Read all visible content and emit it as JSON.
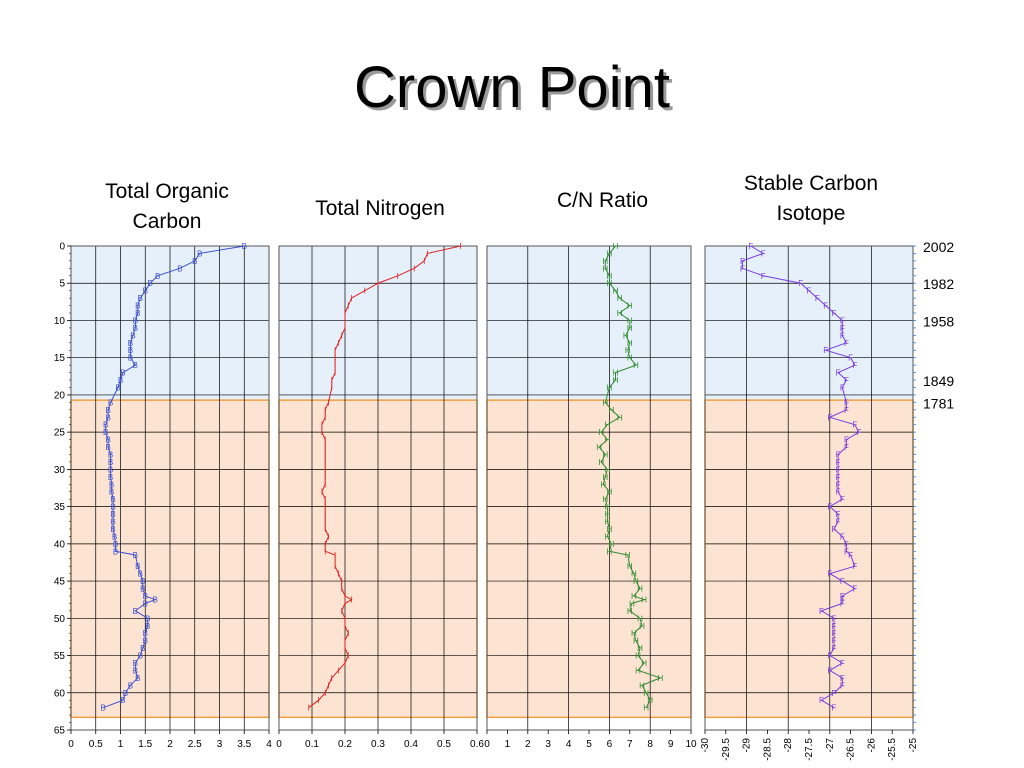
{
  "page": {
    "title": "Crown Point"
  },
  "colors": {
    "upper_zone_fill": "#e6f0fb",
    "lower_zone_fill": "#fde3d2",
    "lower_zone_border": "#f0a040",
    "grid": "#000000"
  },
  "date_labels": [
    {
      "depth": 0,
      "label": "2002"
    },
    {
      "depth": 5,
      "label": "1982"
    },
    {
      "depth": 10,
      "label": "1958"
    },
    {
      "depth": 18,
      "label": "1849"
    },
    {
      "depth": 21,
      "label": "1781"
    }
  ],
  "chart_data": [
    {
      "type": "line",
      "title": "Total Organic Carbon",
      "marker": "B",
      "color": "#3a4fd0",
      "xlim": [
        0,
        4
      ],
      "xticks": [
        "0",
        "0.5",
        "1",
        "1.5",
        "2",
        "2.5",
        "3",
        "3.5",
        "4"
      ],
      "ylim": [
        0,
        65
      ],
      "yticks": [
        "0",
        "5",
        "10",
        "15",
        "20",
        "25",
        "30",
        "35",
        "40",
        "45",
        "50",
        "55",
        "60",
        "65"
      ],
      "x": [
        3.5,
        2.6,
        2.5,
        2.2,
        1.75,
        1.6,
        1.5,
        1.4,
        1.35,
        1.35,
        1.3,
        1.3,
        1.25,
        1.2,
        1.2,
        1.2,
        1.3,
        1.05,
        1.0,
        0.95,
        0.8,
        0.75,
        0.75,
        0.7,
        0.7,
        0.75,
        0.75,
        0.8,
        0.8,
        0.8,
        0.8,
        0.82,
        0.82,
        0.85,
        0.85,
        0.85,
        0.85,
        0.85,
        0.88,
        0.9,
        0.9,
        1.3,
        1.35,
        1.4,
        1.45,
        1.45,
        1.5,
        1.7,
        1.5,
        1.3,
        1.55,
        1.55,
        1.5,
        1.5,
        1.45,
        1.4,
        1.3,
        1.3,
        1.35,
        1.2,
        1.1,
        1.05,
        0.65
      ],
      "y": [
        0,
        1,
        2,
        3,
        4,
        5,
        6,
        7,
        8,
        9,
        10,
        11,
        12,
        13,
        14,
        15,
        16,
        17,
        18,
        19,
        21,
        22,
        23,
        24,
        25,
        26,
        27,
        28,
        29,
        30,
        31,
        32,
        33,
        34,
        35,
        36,
        37,
        38,
        39,
        40,
        41,
        41.5,
        43,
        44,
        45,
        46,
        47,
        47.5,
        48,
        49,
        50,
        51,
        52,
        53,
        54,
        55,
        56,
        57,
        58,
        59,
        60,
        61,
        62
      ]
    },
    {
      "type": "line",
      "title": "Total Nitrogen",
      "marker": "I",
      "color": "#e02020",
      "xlim": [
        0,
        0.6
      ],
      "xticks": [
        "0",
        "0.1",
        "0.2",
        "0.3",
        "0.4",
        "0.5",
        "0.6"
      ],
      "ylim": [
        0,
        65
      ],
      "yticks": [
        "0",
        "5",
        "10",
        "15",
        "20",
        "25",
        "30",
        "35",
        "40",
        "45",
        "50",
        "55",
        "60",
        "65"
      ],
      "x": [
        0.55,
        0.45,
        0.44,
        0.41,
        0.36,
        0.3,
        0.26,
        0.22,
        0.21,
        0.2,
        0.2,
        0.2,
        0.19,
        0.18,
        0.17,
        0.17,
        0.17,
        0.17,
        0.16,
        0.16,
        0.15,
        0.14,
        0.14,
        0.13,
        0.13,
        0.14,
        0.14,
        0.14,
        0.14,
        0.14,
        0.14,
        0.14,
        0.13,
        0.14,
        0.14,
        0.14,
        0.14,
        0.14,
        0.15,
        0.14,
        0.14,
        0.17,
        0.17,
        0.18,
        0.19,
        0.19,
        0.2,
        0.22,
        0.2,
        0.19,
        0.2,
        0.2,
        0.21,
        0.2,
        0.2,
        0.21,
        0.2,
        0.18,
        0.16,
        0.15,
        0.14,
        0.12,
        0.09
      ],
      "y": [
        0,
        1,
        2,
        3,
        4,
        5,
        6,
        7,
        8,
        9,
        10,
        11,
        12,
        13,
        14,
        15,
        16,
        17,
        18,
        19,
        21,
        22,
        23,
        24,
        25,
        26,
        27,
        28,
        29,
        30,
        31,
        32,
        33,
        34,
        35,
        36,
        37,
        38,
        39,
        40,
        41,
        41.5,
        43,
        44,
        45,
        46,
        47,
        47.5,
        48,
        49,
        50,
        51,
        52,
        53,
        54,
        55,
        56,
        57,
        58,
        59,
        60,
        61,
        62
      ]
    },
    {
      "type": "line",
      "title": "C/N Ratio",
      "marker": "H",
      "color": "#2e8b2e",
      "xlim": [
        0,
        10
      ],
      "xticks": [
        "0",
        "1",
        "2",
        "3",
        "4",
        "5",
        "6",
        "7",
        "8",
        "9",
        "10"
      ],
      "ylim": [
        0,
        65
      ],
      "yticks": [
        "0",
        "5",
        "10",
        "15",
        "20",
        "25",
        "30",
        "35",
        "40",
        "45",
        "50",
        "55",
        "60",
        "65"
      ],
      "x": [
        6.3,
        6.0,
        5.8,
        5.8,
        6.0,
        6.0,
        6.3,
        6.5,
        7.0,
        6.5,
        7.0,
        7.0,
        6.8,
        7.0,
        6.9,
        7.0,
        7.3,
        6.3,
        6.3,
        6.0,
        5.8,
        6.1,
        6.5,
        5.9,
        5.6,
        5.9,
        5.5,
        5.8,
        5.6,
        5.9,
        5.8,
        5.7,
        6.0,
        5.8,
        5.9,
        5.9,
        5.9,
        6.0,
        5.9,
        6.1,
        6.0,
        6.9,
        7.0,
        7.2,
        7.3,
        7.5,
        7.2,
        7.7,
        7.1,
        7.0,
        7.5,
        7.6,
        7.2,
        7.3,
        7.5,
        7.4,
        7.7,
        7.4,
        8.5,
        7.6,
        7.8,
        8.0,
        7.8
      ],
      "y": [
        0,
        1,
        2,
        3,
        4,
        5,
        6,
        7,
        8,
        9,
        10,
        11,
        12,
        13,
        14,
        15,
        16,
        17,
        18,
        19,
        21,
        22,
        23,
        24,
        25,
        26,
        27,
        28,
        29,
        30,
        31,
        32,
        33,
        34,
        35,
        36,
        37,
        38,
        39,
        40,
        41,
        41.5,
        43,
        44,
        45,
        46,
        47,
        47.5,
        48,
        49,
        50,
        51,
        52,
        53,
        54,
        55,
        56,
        57,
        58,
        59,
        60,
        61,
        62
      ]
    },
    {
      "type": "line",
      "title": "Stable Carbon Isotope",
      "marker": "F",
      "color": "#7a3be0",
      "xlim": [
        -30,
        -25
      ],
      "xticks": [
        "-30",
        "-29.5",
        "-29",
        "-28.5",
        "-28",
        "-27.5",
        "-27",
        "-26.5",
        "-26",
        "-25.5",
        "-25"
      ],
      "ylim": [
        0,
        65
      ],
      "yticks": [
        "0",
        "5",
        "10",
        "15",
        "20",
        "25",
        "30",
        "35",
        "40",
        "45",
        "50",
        "55",
        "60",
        "65"
      ],
      "x": [
        -28.9,
        -28.6,
        -29.1,
        -29.1,
        -28.6,
        -27.7,
        -27.5,
        -27.3,
        -27.1,
        -26.9,
        -26.7,
        -26.7,
        -26.7,
        -26.6,
        -27.1,
        -26.5,
        -26.4,
        -26.8,
        -26.6,
        -26.7,
        -26.6,
        -26.6,
        -27.0,
        -26.4,
        -26.3,
        -26.6,
        -26.6,
        -26.8,
        -26.8,
        -26.8,
        -26.8,
        -26.8,
        -26.8,
        -26.7,
        -27.0,
        -26.8,
        -26.8,
        -26.9,
        -26.7,
        -26.6,
        -26.6,
        -26.5,
        -26.4,
        -27.0,
        -26.7,
        -26.4,
        -26.7,
        -26.7,
        -26.7,
        -27.2,
        -26.9,
        -26.9,
        -26.9,
        -26.9,
        -26.9,
        -27.0,
        -26.7,
        -27.0,
        -26.7,
        -26.7,
        -26.9,
        -27.2,
        -26.9
      ],
      "y": [
        0,
        1,
        2,
        3,
        4,
        5,
        6,
        7,
        8,
        9,
        10,
        11,
        12,
        13,
        14,
        15,
        16,
        17,
        18,
        19,
        21,
        22,
        23,
        24,
        25,
        26,
        27,
        28,
        29,
        30,
        31,
        32,
        33,
        34,
        35,
        36,
        37,
        38,
        39,
        40,
        41,
        41.5,
        43,
        44,
        45,
        46,
        47,
        47.5,
        48,
        49,
        50,
        51,
        52,
        53,
        54,
        55,
        56,
        57,
        58,
        59,
        60,
        61,
        62
      ]
    }
  ]
}
